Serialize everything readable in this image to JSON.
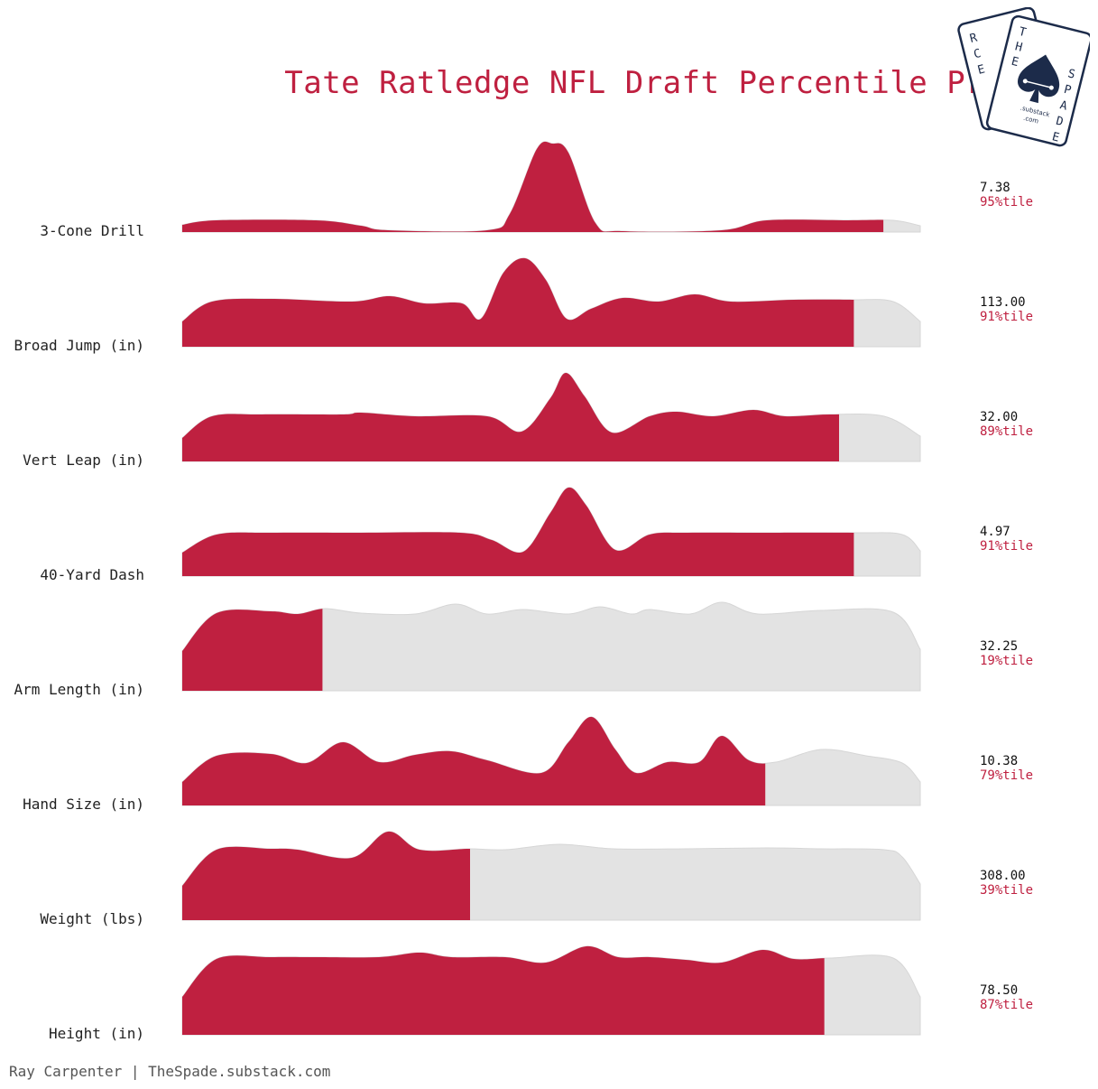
{
  "title": "Tate Ratledge NFL Draft Percentile Profile",
  "footer": "Ray Carpenter | TheSpade.substack.com",
  "logo": {
    "back_card_letters": [
      "R",
      "C",
      "E"
    ],
    "front_card_letters_left": [
      "T",
      "H",
      "E"
    ],
    "front_card_letters_right": [
      "S",
      "P",
      "A",
      "D",
      "E"
    ],
    "small_text_1": ".substack",
    "small_text_2": ".com",
    "icon": "spade-icon"
  },
  "colors": {
    "accent": "#bf2040",
    "background_fill": "#e3e3e3",
    "logo_navy": "#1c2b4a"
  },
  "chart_data": {
    "type": "ridgeline",
    "title": "Tate Ratledge NFL Draft Percentile Profile",
    "rows": [
      {
        "label": "3-Cone Drill",
        "value": "7.38",
        "percentile_label": "95%tile",
        "percentile": 95
      },
      {
        "label": "Broad Jump (in)",
        "value": "113.00",
        "percentile_label": "91%tile",
        "percentile": 91
      },
      {
        "label": "Vert Leap (in)",
        "value": "32.00",
        "percentile_label": "89%tile",
        "percentile": 89
      },
      {
        "label": "40-Yard Dash",
        "value": "4.97",
        "percentile_label": "91%tile",
        "percentile": 91
      },
      {
        "label": "Arm Length (in)",
        "value": "32.25",
        "percentile_label": "19%tile",
        "percentile": 19
      },
      {
        "label": "Hand Size (in)",
        "value": "10.38",
        "percentile_label": "79%tile",
        "percentile": 79
      },
      {
        "label": "Weight (lbs)",
        "value": "308.00",
        "percentile_label": "39%tile",
        "percentile": 39
      },
      {
        "label": "Height (in)",
        "value": "78.50",
        "percentile_label": "87%tile",
        "percentile": 87
      }
    ]
  }
}
